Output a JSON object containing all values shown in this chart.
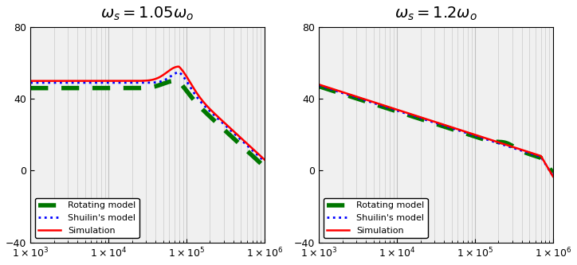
{
  "title1": "$\\omega_s = 1.05\\omega_o$",
  "title2": "$\\omega_s = 1.2\\omega_o$",
  "xmin": 1000.0,
  "xmax": 1000000.0,
  "ymin": -40,
  "ymax": 80,
  "yticks": [
    -40,
    0,
    40,
    80
  ],
  "sim_color": "#ff0000",
  "shuilin_color": "#0000ff",
  "rotating_color": "#007700",
  "legend_labels": [
    "Simulation",
    "Shuilin's model",
    "Rotating model"
  ],
  "bg_color": "#f0f0f0",
  "grid_color": "#c0c0c0"
}
